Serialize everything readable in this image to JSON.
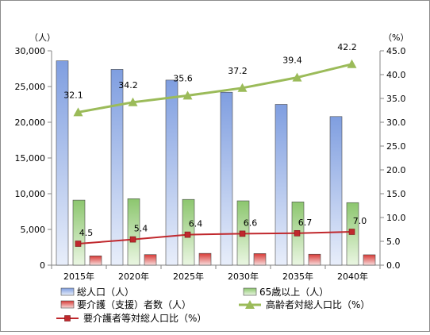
{
  "chart_data": {
    "type": "bar",
    "categories": [
      "2015年",
      "2020年",
      "2025年",
      "2030年",
      "2035年",
      "2040年"
    ],
    "y_left_unit": "（人）",
    "y_right_unit": "（%）",
    "y_left_ticks": [
      "0",
      "5,000",
      "10,000",
      "15,000",
      "20,000",
      "25,000",
      "30,000"
    ],
    "y_right_ticks": [
      "0.0",
      "5.0",
      "10.0",
      "15.0",
      "20.0",
      "25.0",
      "30.0",
      "35.0",
      "40.0",
      "45.0"
    ],
    "ylim_left": [
      0,
      30000
    ],
    "ylim_right": [
      0,
      45
    ],
    "grid": false,
    "legend_position": "bottom",
    "bar_series": [
      {
        "name": "総人口（人）",
        "values": [
          28600,
          27400,
          25900,
          24200,
          22500,
          20800
        ],
        "color": "#6f8fce"
      },
      {
        "name": "65歳以上（人）",
        "values": [
          9100,
          9300,
          9200,
          9000,
          8850,
          8750
        ],
        "color": "#8cc66e"
      },
      {
        "name": "要介護（支援）者数（人）",
        "values": [
          1300,
          1480,
          1650,
          1620,
          1530,
          1450
        ],
        "color": "#d83a36"
      }
    ],
    "line_series": [
      {
        "name": "高齢者対総人口比（%）",
        "values": [
          32.1,
          34.2,
          35.6,
          37.2,
          39.4,
          42.2
        ],
        "labels": [
          "32.1",
          "34.2",
          "35.6",
          "37.2",
          "39.4",
          "42.2"
        ],
        "color": "#9bbb59",
        "marker": "triangle"
      },
      {
        "name": "要介護者等対総人口比（%）",
        "values": [
          4.5,
          5.4,
          6.4,
          6.6,
          6.7,
          7.0
        ],
        "labels": [
          "4.5",
          "5.4",
          "6.4",
          "6.6",
          "6.7",
          "7.0"
        ],
        "color": "#c0282d",
        "marker": "square"
      }
    ]
  }
}
